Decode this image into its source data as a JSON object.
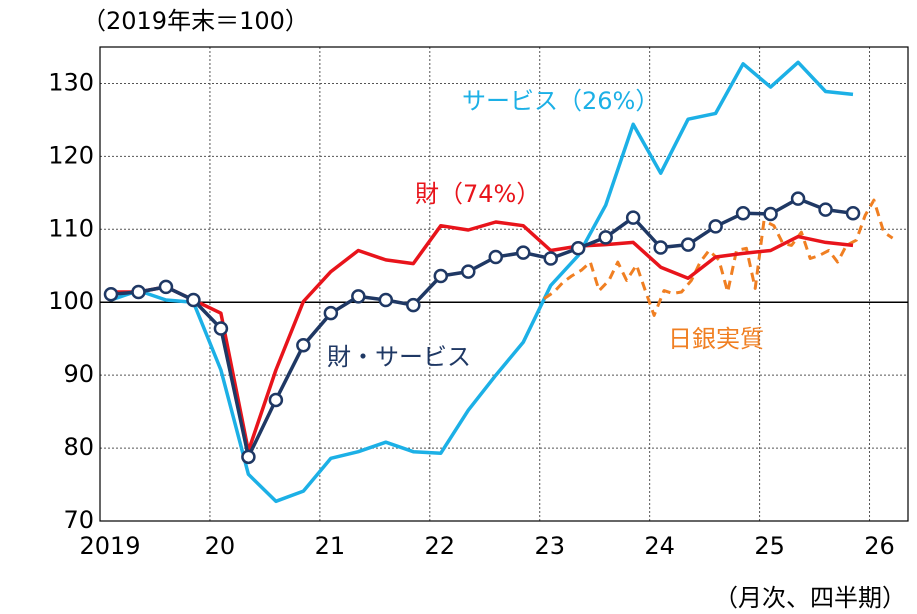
{
  "chart_data": {
    "type": "line",
    "subtitle": "（2019年末＝100）",
    "xlabel": "（月次、四半期）",
    "x": [
      2019.1,
      2019.35,
      2019.6,
      2019.85,
      2020.1,
      2020.35,
      2020.6,
      2020.85,
      2021.1,
      2021.35,
      2021.6,
      2021.85,
      2022.1,
      2022.35,
      2022.6,
      2022.85,
      2023.1,
      2023.35,
      2023.6,
      2023.85,
      2024.1,
      2024.35,
      2024.6,
      2024.85,
      2025.1,
      2025.35,
      2025.6,
      2025.85
    ],
    "series": [
      {
        "name": "財・サービス",
        "color": "#1f3864",
        "marker": "circle",
        "values": [
          101.1,
          101.4,
          102.1,
          100.3,
          96.4,
          78.8,
          86.6,
          94.1,
          98.5,
          100.8,
          100.3,
          99.6,
          103.6,
          104.2,
          106.2,
          106.8,
          106.0,
          107.4,
          108.9,
          111.6,
          107.5,
          107.9,
          110.4,
          112.2,
          112.1,
          114.2,
          112.7,
          112.2
        ]
      },
      {
        "name": "財（74%）",
        "color": "#e8141b",
        "values": [
          101.4,
          101.4,
          102.1,
          100.3,
          98.5,
          79.6,
          90.7,
          100.1,
          104.2,
          107.1,
          105.8,
          105.3,
          110.5,
          109.9,
          111.0,
          110.5,
          107.1,
          107.7,
          107.9,
          108.2,
          104.8,
          103.3,
          106.2,
          106.7,
          107.1,
          109.0,
          108.2,
          107.8
        ]
      },
      {
        "name": "サービス（26%）",
        "color": "#1cb0e6",
        "values": [
          100.3,
          101.6,
          100.3,
          100.0,
          90.7,
          76.4,
          72.7,
          74.1,
          78.6,
          79.5,
          80.8,
          79.5,
          79.3,
          85.2,
          90.0,
          94.5,
          102.3,
          106.4,
          113.3,
          124.4,
          117.7,
          125.1,
          125.9,
          132.7,
          129.5,
          132.9,
          128.9,
          128.5
        ]
      },
      {
        "name": "日銀実質",
        "color": "#f07f22",
        "dashed": true,
        "x": [
          2023.04,
          2023.13,
          2023.21,
          2023.29,
          2023.38,
          2023.46,
          2023.54,
          2023.63,
          2023.71,
          2023.79,
          2023.88,
          2023.96,
          2024.04,
          2024.13,
          2024.21,
          2024.29,
          2024.38,
          2024.46,
          2024.54,
          2024.63,
          2024.71,
          2024.79,
          2024.88,
          2024.96,
          2025.04,
          2025.13,
          2025.21,
          2025.29,
          2025.38,
          2025.46,
          2025.54,
          2025.63,
          2025.71,
          2025.79,
          2025.88,
          2025.96,
          2026.04,
          2026.13,
          2026.21
        ],
        "values": [
          100.5,
          101.4,
          102.7,
          103.6,
          104.4,
          105.5,
          101.6,
          103.0,
          105.5,
          103.0,
          105.1,
          101.6,
          98.2,
          101.6,
          101.2,
          101.4,
          103.0,
          105.5,
          107.1,
          105.8,
          101.4,
          107.1,
          107.4,
          101.9,
          111.2,
          110.5,
          108.1,
          107.8,
          109.6,
          106.0,
          106.4,
          107.1,
          105.5,
          107.8,
          108.5,
          111.9,
          114.0,
          109.6,
          108.8
        ]
      }
    ],
    "xlim": [
      2019,
      2026.35
    ],
    "xticks": [
      2019,
      {
        "value": 2020,
        "label": "20"
      },
      {
        "value": 2021,
        "label": "21"
      },
      {
        "value": 2022,
        "label": "22"
      },
      {
        "value": 2023,
        "label": "23"
      },
      {
        "value": 2024,
        "label": "24"
      },
      {
        "value": 2025,
        "label": "25"
      },
      {
        "value": 2026,
        "label": "26"
      }
    ],
    "ylim": [
      70,
      135
    ],
    "yticks": [
      70,
      80,
      90,
      100,
      110,
      120,
      130
    ],
    "reference_line": 100,
    "grid": true
  }
}
